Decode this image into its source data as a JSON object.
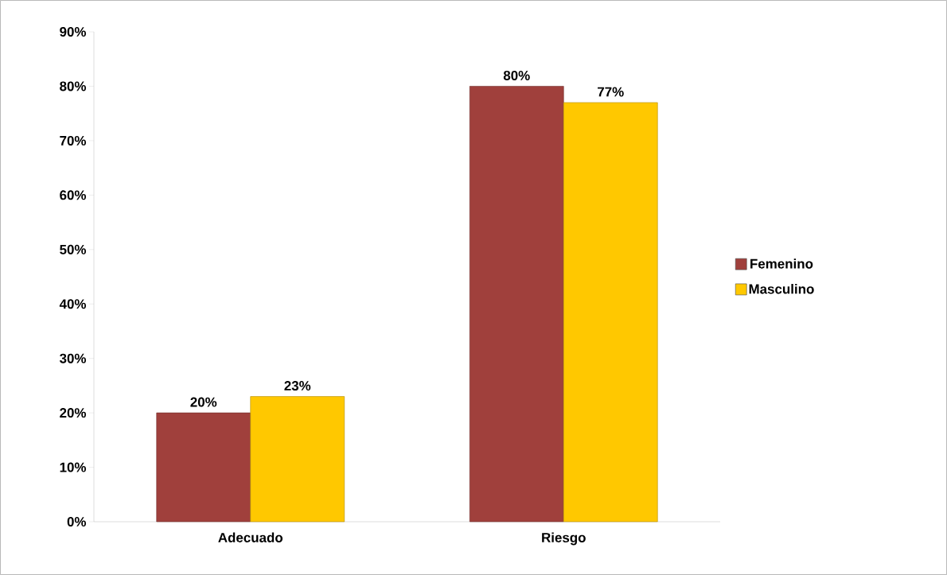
{
  "chart_data": {
    "type": "bar",
    "categories": [
      "Adecuado",
      "Riesgo"
    ],
    "series": [
      {
        "name": "Femenino",
        "color": "#a0403c",
        "values": [
          20,
          80
        ],
        "value_labels": [
          "20%",
          "80%"
        ]
      },
      {
        "name": "Masculino",
        "color": "#ffc800",
        "values": [
          23,
          77
        ],
        "value_labels": [
          "23%",
          "77%"
        ]
      }
    ],
    "ylim": [
      0,
      90
    ],
    "yticks": [
      {
        "value": 0,
        "label": "0%"
      },
      {
        "value": 10,
        "label": "10%"
      },
      {
        "value": 20,
        "label": "20%"
      },
      {
        "value": 30,
        "label": "30%"
      },
      {
        "value": 40,
        "label": "40%"
      },
      {
        "value": 50,
        "label": "50%"
      },
      {
        "value": 60,
        "label": "60%"
      },
      {
        "value": 70,
        "label": "70%"
      },
      {
        "value": 80,
        "label": "80%"
      },
      {
        "value": 90,
        "label": "90%"
      }
    ],
    "legend": "right"
  }
}
